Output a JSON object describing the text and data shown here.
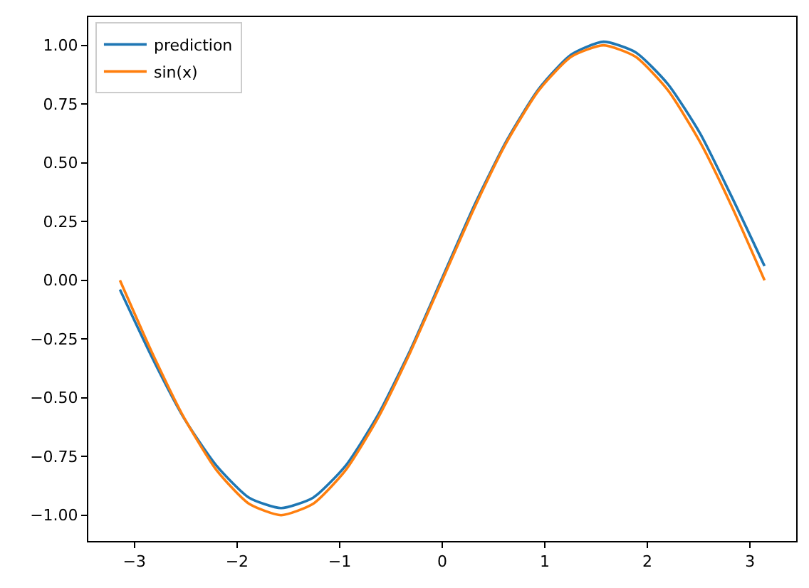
{
  "chart_data": {
    "type": "line",
    "x": [
      -3.1416,
      -2.8274,
      -2.5133,
      -2.1991,
      -1.885,
      -1.5708,
      -1.2566,
      -0.9425,
      -0.6283,
      -0.3142,
      0,
      0.3142,
      0.6283,
      0.9425,
      1.2566,
      1.5708,
      1.885,
      2.1991,
      2.5133,
      2.8274,
      3.1416
    ],
    "series": [
      {
        "name": "prediction",
        "color": "#1f77b4",
        "values": [
          -0.04,
          -0.33,
          -0.59,
          -0.79,
          -0.925,
          -0.97,
          -0.925,
          -0.79,
          -0.575,
          -0.3,
          0.01,
          0.32,
          0.595,
          0.815,
          0.96,
          1.015,
          0.97,
          0.835,
          0.625,
          0.35,
          0.06
        ]
      },
      {
        "name": "sin(x)",
        "color": "#ff7f0e",
        "values": [
          0,
          -0.309,
          -0.588,
          -0.809,
          -0.951,
          -1,
          -0.951,
          -0.809,
          -0.588,
          -0.309,
          0,
          0.309,
          0.588,
          0.809,
          0.951,
          1,
          0.951,
          0.809,
          0.588,
          0.309,
          0
        ]
      }
    ],
    "xlim": [
      -3.45,
      3.45
    ],
    "xticks": [
      {
        "value": -3,
        "label": "−3"
      },
      {
        "value": -2,
        "label": "−2"
      },
      {
        "value": -1,
        "label": "−1"
      },
      0,
      1,
      2,
      3
    ],
    "ylim": [
      -1.11,
      1.12
    ],
    "yticks": [
      {
        "value": -1,
        "label": "−1.00"
      },
      {
        "value": -0.75,
        "label": "−0.75"
      },
      {
        "value": -0.5,
        "label": "−0.50"
      },
      {
        "value": -0.25,
        "label": "−0.25"
      },
      {
        "value": 0,
        "label": "0.00"
      },
      {
        "value": 0.25,
        "label": "0.25"
      },
      {
        "value": 0.5,
        "label": "0.50"
      },
      {
        "value": 0.75,
        "label": "0.75"
      },
      {
        "value": 1,
        "label": "1.00"
      }
    ],
    "grid": false,
    "legend": "top left",
    "marker": "none",
    "line_style": "solid"
  }
}
